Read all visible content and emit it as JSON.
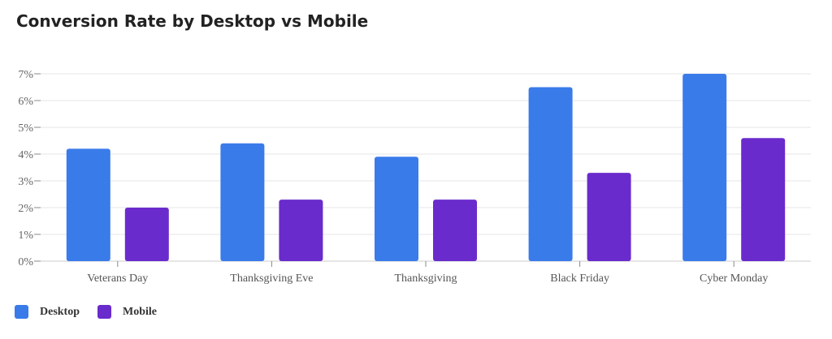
{
  "chart_data": {
    "type": "bar",
    "title": "Conversion Rate by Desktop vs Mobile",
    "categories": [
      "Veterans Day",
      "Thanksgiving Eve",
      "Thanksgiving",
      "Black Friday",
      "Cyber Monday"
    ],
    "series": [
      {
        "name": "Desktop",
        "color": "#3a7bea",
        "values": [
          4.2,
          4.4,
          3.9,
          6.5,
          7.0
        ]
      },
      {
        "name": "Mobile",
        "color": "#6a2bcc",
        "values": [
          2.0,
          2.3,
          2.3,
          3.3,
          4.6
        ]
      }
    ],
    "y_ticks": [
      "0%",
      "1%",
      "2%",
      "3%",
      "4%",
      "5%",
      "6%",
      "7%"
    ],
    "ylim": [
      0,
      7
    ],
    "grid": true,
    "legend_position": "bottom-left"
  }
}
